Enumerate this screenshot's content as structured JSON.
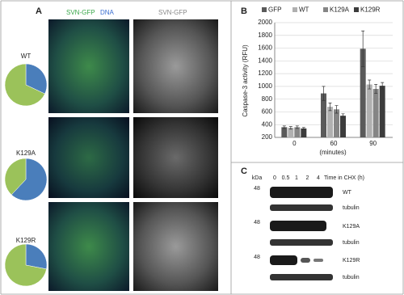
{
  "panel_a": {
    "label": "A",
    "header_left": [
      "SVN-GFP",
      "DNA"
    ],
    "header_right": "SVN-GFP",
    "rows": [
      "WT",
      "K129A",
      "K129R"
    ]
  },
  "chart_data": [
    {
      "type": "pie",
      "values": [
        32,
        68
      ],
      "colors": [
        "#4a7ebb",
        "#9bc25a"
      ]
    },
    {
      "type": "pie",
      "values": [
        62,
        38
      ],
      "colors": [
        "#4a7ebb",
        "#9bc25a"
      ]
    },
    {
      "type": "pie",
      "values": [
        28,
        72
      ],
      "colors": [
        "#4a7ebb",
        "#9bc25a"
      ]
    },
    {
      "type": "bar",
      "panel_label": "B",
      "y_label": "Caspase-3 activity (RFU)",
      "x_label": "(minutes)",
      "categories": [
        "0",
        "60",
        "90"
      ],
      "series": [
        {
          "name": "GFP",
          "color": "#5a5a5a",
          "values": [
            360,
            890,
            1590
          ],
          "errors": [
            20,
            110,
            280
          ]
        },
        {
          "name": "WT",
          "color": "#b0b0b0",
          "values": [
            350,
            680,
            1030
          ],
          "errors": [
            20,
            60,
            70
          ]
        },
        {
          "name": "K129A",
          "color": "#858585",
          "values": [
            360,
            640,
            960
          ],
          "errors": [
            20,
            60,
            70
          ]
        },
        {
          "name": "K129R",
          "color": "#3c3c3c",
          "values": [
            340,
            540,
            1010
          ],
          "errors": [
            15,
            30,
            50
          ]
        }
      ],
      "ylim": [
        200,
        2000
      ],
      "yticks": [
        200,
        400,
        600,
        800,
        1000,
        1200,
        1400,
        1600,
        1800,
        2000
      ],
      "grid": true
    }
  ],
  "panel_c": {
    "label": "C",
    "kda": "kDa",
    "lanes": [
      "0",
      "0.5",
      "1",
      "2",
      "4"
    ],
    "time_label": "Time in CHX (h)",
    "blots": [
      {
        "marker": "48",
        "label": "WT",
        "loading": "tubulin"
      },
      {
        "marker": "48",
        "label": "K129A",
        "loading": "tubulin"
      },
      {
        "marker": "48",
        "label": "K129R",
        "loading": "tubulin"
      }
    ]
  }
}
